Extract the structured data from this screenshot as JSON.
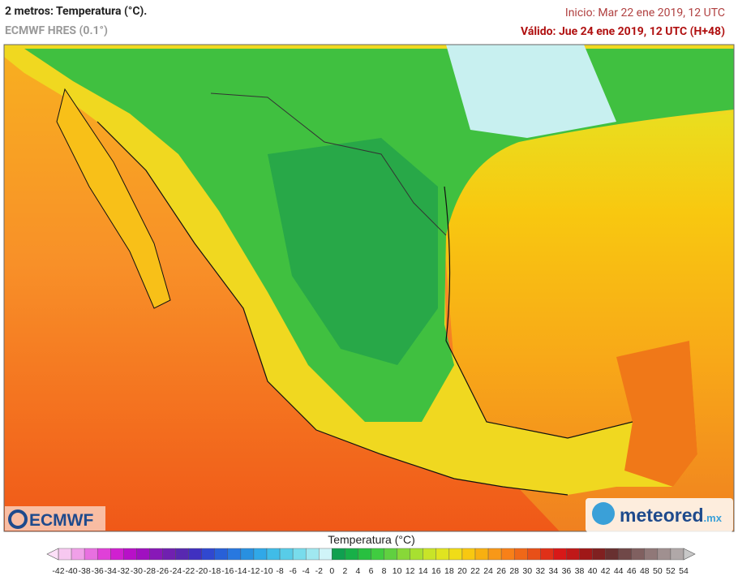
{
  "header": {
    "title": "2 metros: Temperatura (°C).",
    "model": "ECMWF HRES (0.1°)",
    "init": "Inicio: Mar 22 ene 2019, 12 UTC",
    "valid": "Válido: Jue 24 ene 2019, 12 UTC (H+48)"
  },
  "logos": {
    "left": "ECMWF",
    "right": "meteored",
    "right_suffix": ".mx"
  },
  "legend": {
    "title": "Temperatura (°C)",
    "ticks": [
      -42,
      -40,
      -38,
      -36,
      -34,
      -32,
      -30,
      -28,
      -26,
      -24,
      -22,
      -20,
      -18,
      -16,
      -14,
      -12,
      -10,
      -8,
      -6,
      -4,
      -2,
      0,
      2,
      4,
      6,
      8,
      10,
      12,
      14,
      16,
      18,
      20,
      22,
      24,
      26,
      28,
      30,
      32,
      34,
      36,
      38,
      40,
      42,
      44,
      46,
      48,
      50,
      52,
      54
    ],
    "colors": [
      "#f7c8f0",
      "#f0a0e8",
      "#e870e0",
      "#e040d8",
      "#d020d0",
      "#b810c8",
      "#a010c0",
      "#8818b8",
      "#7020b0",
      "#5828b0",
      "#4030c0",
      "#3048d0",
      "#2860d8",
      "#2878e0",
      "#2890e0",
      "#30a8e8",
      "#40bce8",
      "#58cce8",
      "#78dcec",
      "#a0e8f0",
      "#d0f4f8",
      "#10a050",
      "#18b048",
      "#28c040",
      "#40cc40",
      "#60d040",
      "#88d838",
      "#a8e030",
      "#c8e428",
      "#e0e420",
      "#f0dc18",
      "#f8c810",
      "#f8b010",
      "#f89818",
      "#f88018",
      "#f06818",
      "#e85018",
      "#e03018",
      "#d81818",
      "#c01818",
      "#a01818",
      "#802020",
      "#683030",
      "#704848",
      "#806060",
      "#907878",
      "#a09090",
      "#b0a8a8"
    ],
    "low_color": "#fde0f8",
    "high_color": "#c8c8c8"
  }
}
